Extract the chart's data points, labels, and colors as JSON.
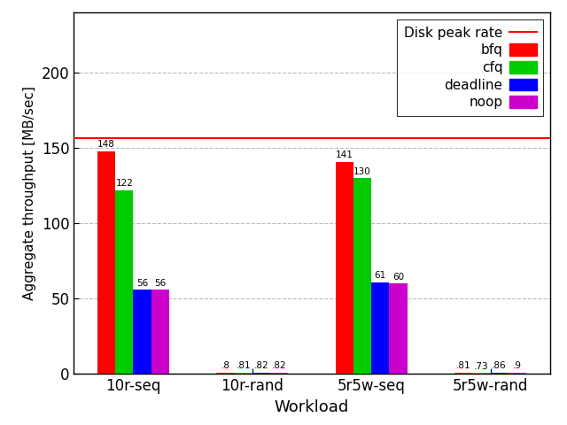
{
  "xlabel": "Workload",
  "ylabel": "Aggregate throughput [MB/sec]",
  "categories": [
    "10r-seq",
    "10r-rand",
    "5r5w-seq",
    "5r5w-rand"
  ],
  "schedulers": [
    "bfq",
    "cfq",
    "deadline",
    "noop"
  ],
  "colors": [
    "#ff0000",
    "#00cc00",
    "#0000ff",
    "#cc00cc"
  ],
  "values": {
    "bfq": [
      148,
      0.8,
      141,
      0.81
    ],
    "cfq": [
      122,
      0.81,
      130,
      0.73
    ],
    "deadline": [
      56,
      0.82,
      61,
      0.86
    ],
    "noop": [
      56,
      0.82,
      60,
      0.9
    ]
  },
  "labels": {
    "bfq": [
      "148",
      ".8",
      "141",
      ".81"
    ],
    "cfq": [
      "122",
      ".81",
      "130",
      ".73"
    ],
    "deadline": [
      "56",
      ".82",
      "61",
      ".86"
    ],
    "noop": [
      "56",
      ".82",
      "60",
      ".9"
    ]
  },
  "disk_peak_rate": 157,
  "disk_peak_color": "#ff0000",
  "ylim": [
    0,
    240
  ],
  "yticks": [
    0,
    50,
    100,
    150,
    200
  ],
  "bar_width": 0.15,
  "background_color": "#ffffff",
  "grid_color": "#bbbbbb",
  "legend_line_label": "Disk peak rate"
}
